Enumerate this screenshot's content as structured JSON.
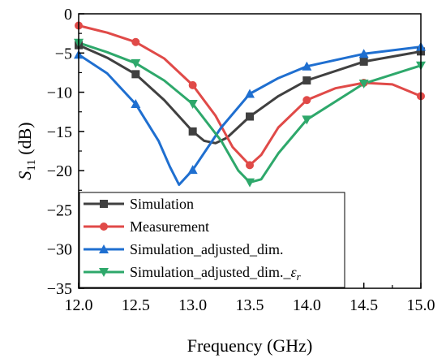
{
  "chart_data": {
    "type": "line",
    "title": "",
    "xlabel": "Frequency (GHz)",
    "ylabel_main": "S",
    "ylabel_sub": "11",
    "ylabel_unit": " (dB)",
    "xlim": [
      12.0,
      15.0
    ],
    "ylim": [
      -35,
      0
    ],
    "xticks": [
      12.0,
      12.5,
      13.0,
      13.5,
      14.0,
      14.5,
      15.0
    ],
    "xtick_labels": [
      "12.0",
      "12.5",
      "13.0",
      "13.5",
      "14.0",
      "14.5",
      "15.0"
    ],
    "yticks": [
      0,
      -5,
      -10,
      -15,
      -20,
      -25,
      -30,
      -35
    ],
    "ytick_labels": [
      "0",
      "−5",
      "−10",
      "−15",
      "−20",
      "−25",
      "−30",
      "−35"
    ],
    "grid": false,
    "legend_position": "bottom-left",
    "series": [
      {
        "name": "Simulation",
        "color": "#404040",
        "marker": "square",
        "x": [
          12.0,
          12.25,
          12.5,
          12.75,
          13.0,
          13.1,
          13.2,
          13.3,
          13.5,
          13.75,
          14.0,
          14.5,
          15.0
        ],
        "y": [
          -4.0,
          -5.6,
          -7.7,
          -11.0,
          -15.0,
          -16.2,
          -16.5,
          -15.8,
          -13.1,
          -10.5,
          -8.5,
          -6.1,
          -4.8
        ],
        "marker_x": [
          12.0,
          12.5,
          13.0,
          13.5,
          14.0,
          14.5,
          15.0
        ],
        "marker_y": [
          -4.0,
          -7.7,
          -15.0,
          -13.1,
          -8.5,
          -6.1,
          -4.8
        ]
      },
      {
        "name": "Measurement",
        "color": "#e04a48",
        "marker": "circle",
        "x": [
          12.0,
          12.25,
          12.5,
          12.75,
          13.0,
          13.2,
          13.35,
          13.5,
          13.6,
          13.75,
          14.0,
          14.25,
          14.5,
          14.75,
          15.0
        ],
        "y": [
          -1.5,
          -2.4,
          -3.6,
          -5.7,
          -9.1,
          -13.0,
          -17.0,
          -19.3,
          -18.0,
          -14.5,
          -11.0,
          -9.5,
          -8.8,
          -9.0,
          -10.5
        ],
        "marker_x": [
          12.0,
          12.5,
          13.0,
          13.5,
          14.0,
          14.5,
          15.0
        ],
        "marker_y": [
          -1.5,
          -3.6,
          -9.1,
          -19.3,
          -11.0,
          -8.8,
          -10.5
        ]
      },
      {
        "name": "Simulation_adjusted_dim.",
        "color": "#1f6fd0",
        "marker": "triangle-up",
        "x": [
          12.0,
          12.25,
          12.5,
          12.7,
          12.8,
          12.88,
          13.0,
          13.25,
          13.5,
          13.75,
          14.0,
          14.5,
          15.0
        ],
        "y": [
          -5.2,
          -7.6,
          -11.5,
          -16.2,
          -19.5,
          -21.8,
          -19.9,
          -14.5,
          -10.2,
          -8.2,
          -6.7,
          -5.1,
          -4.2
        ],
        "marker_x": [
          12.0,
          12.5,
          13.0,
          13.5,
          14.0,
          14.5,
          15.0
        ],
        "marker_y": [
          -5.2,
          -11.5,
          -19.9,
          -10.2,
          -6.7,
          -5.1,
          -4.2
        ]
      },
      {
        "name": "Simulation_adjusted_dim._",
        "name_symbol": "ε",
        "name_subscript": "r",
        "color": "#2ea86b",
        "marker": "triangle-down",
        "x": [
          12.0,
          12.25,
          12.5,
          12.75,
          13.0,
          13.25,
          13.4,
          13.5,
          13.6,
          13.75,
          14.0,
          14.5,
          15.0
        ],
        "y": [
          -3.7,
          -4.9,
          -6.3,
          -8.5,
          -11.5,
          -16.2,
          -20.0,
          -21.5,
          -21.1,
          -17.8,
          -13.5,
          -8.9,
          -6.6
        ],
        "marker_x": [
          12.0,
          12.5,
          13.0,
          13.5,
          14.0,
          14.5,
          15.0
        ],
        "marker_y": [
          -3.7,
          -6.3,
          -11.5,
          -21.5,
          -13.5,
          -8.9,
          -6.6
        ]
      }
    ]
  }
}
